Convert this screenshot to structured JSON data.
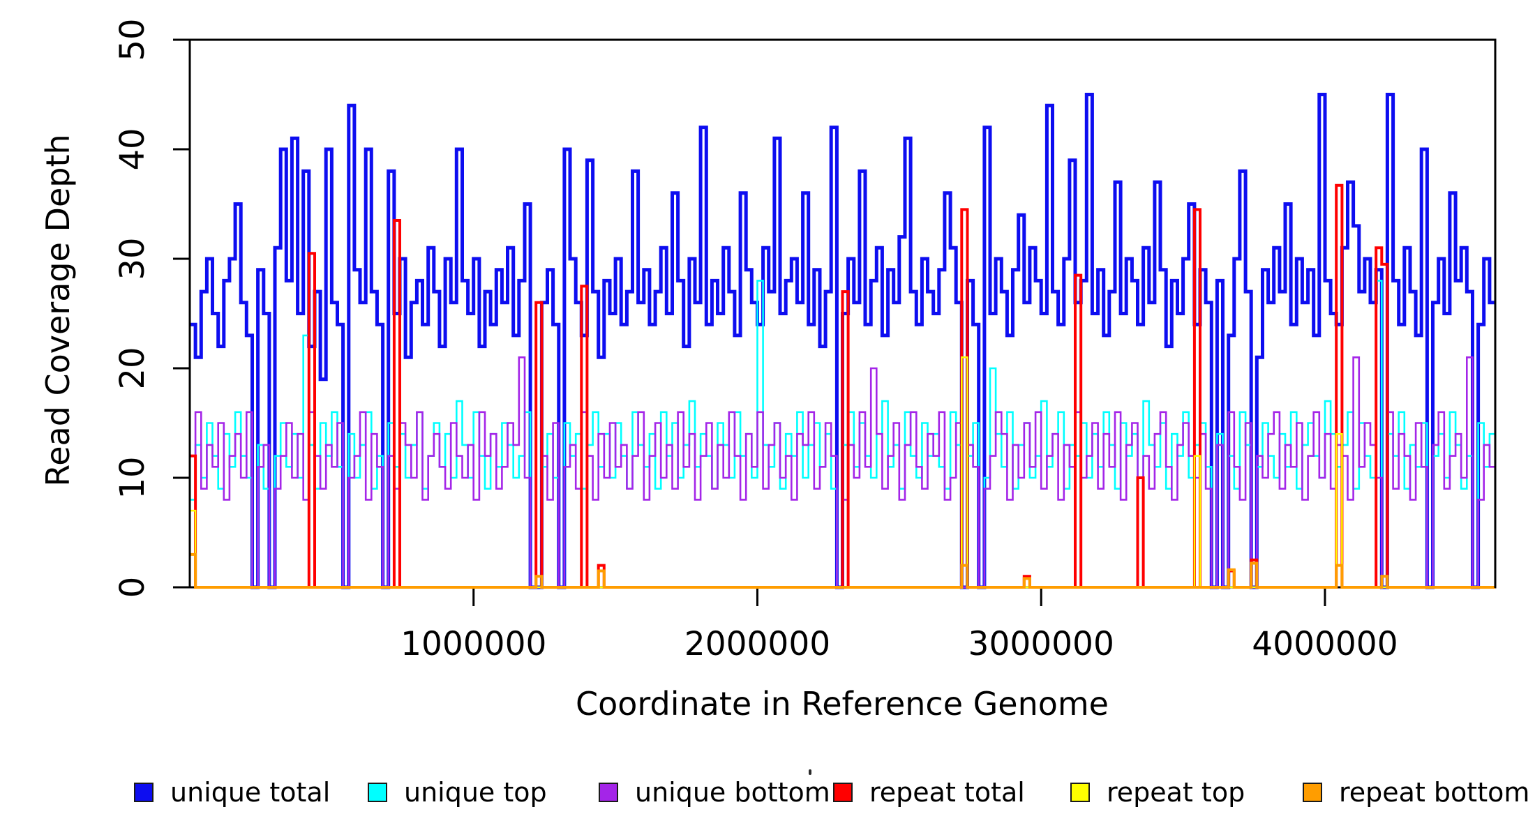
{
  "chart_data": {
    "type": "line",
    "subtype": "step-post",
    "title": "",
    "xlabel": "Coordinate in Reference Genome",
    "ylabel": "Read Coverage Depth",
    "xlim": [
      0,
      4600000
    ],
    "ylim": [
      0,
      50
    ],
    "grid": false,
    "x_start": 0,
    "x_step": 20000,
    "n_points": 230,
    "x_axis_ticks": [
      {
        "value": 1000000,
        "label": "1000000"
      },
      {
        "value": 2000000,
        "label": "2000000"
      },
      {
        "value": 3000000,
        "label": "3000000"
      },
      {
        "value": 4000000,
        "label": "4000000"
      }
    ],
    "y_axis_ticks": [
      {
        "value": 0,
        "label": "0"
      },
      {
        "value": 10,
        "label": "10"
      },
      {
        "value": 20,
        "label": "20"
      },
      {
        "value": 30,
        "label": "30"
      },
      {
        "value": 40,
        "label": "40"
      },
      {
        "value": 50,
        "label": "50"
      }
    ],
    "series": [
      {
        "name": "unique total",
        "color": "#0d0df0",
        "line_width": 5,
        "kind": "dense",
        "values": [
          24,
          21,
          27,
          30,
          25,
          22,
          28,
          30,
          35,
          26,
          23,
          0,
          29,
          25,
          0,
          31,
          40,
          28,
          41,
          25,
          38,
          22,
          27,
          19,
          40,
          26,
          24,
          0,
          44,
          29,
          26,
          40,
          27,
          24,
          0,
          38,
          25,
          30,
          21,
          26,
          28,
          24,
          31,
          27,
          22,
          30,
          26,
          40,
          28,
          25,
          30,
          22,
          27,
          24,
          29,
          26,
          31,
          23,
          28,
          35,
          0,
          0,
          26,
          29,
          24,
          0,
          40,
          30,
          26,
          23,
          39,
          27,
          21,
          28,
          25,
          30,
          24,
          27,
          38,
          26,
          29,
          24,
          27,
          31,
          25,
          36,
          28,
          22,
          30,
          26,
          42,
          24,
          28,
          25,
          31,
          27,
          23,
          36,
          29,
          26,
          24,
          31,
          27,
          41,
          25,
          28,
          30,
          26,
          36,
          24,
          29,
          22,
          27,
          42,
          0,
          25,
          30,
          26,
          38,
          24,
          28,
          31,
          23,
          29,
          26,
          32,
          41,
          27,
          24,
          30,
          27,
          25,
          29,
          36,
          31,
          26,
          0,
          28,
          24,
          0,
          42,
          25,
          30,
          27,
          23,
          29,
          34,
          26,
          31,
          28,
          25,
          44,
          27,
          24,
          30,
          39,
          26,
          28,
          45,
          25,
          29,
          23,
          27,
          37,
          25,
          30,
          28,
          24,
          31,
          26,
          37,
          29,
          22,
          28,
          25,
          30,
          35,
          24,
          29,
          26,
          0,
          28,
          0,
          23,
          30,
          38,
          27,
          0,
          21,
          29,
          26,
          31,
          27,
          35,
          24,
          30,
          26,
          29,
          23,
          45,
          28,
          25,
          24,
          31,
          37,
          33,
          27,
          30,
          26,
          29,
          0,
          45,
          28,
          24,
          31,
          27,
          23,
          40,
          0,
          26,
          30,
          25,
          36,
          28,
          31,
          27,
          0,
          24,
          30,
          26
        ]
      },
      {
        "name": "unique top",
        "color": "#00ffff",
        "line_width": 2.6,
        "kind": "dense",
        "values": [
          8,
          13,
          10,
          15,
          12,
          9,
          14,
          11,
          16,
          12,
          10,
          0,
          13,
          9,
          0,
          12,
          15,
          11,
          14,
          10,
          23,
          13,
          9,
          15,
          12,
          16,
          11,
          0,
          14,
          10,
          13,
          16,
          9,
          12,
          0,
          15,
          11,
          14,
          10,
          13,
          16,
          9,
          12,
          15,
          11,
          14,
          10,
          17,
          13,
          10,
          16,
          12,
          9,
          14,
          11,
          15,
          13,
          10,
          12,
          16,
          0,
          0,
          11,
          14,
          10,
          0,
          15,
          12,
          14,
          9,
          13,
          16,
          11,
          14,
          10,
          15,
          12,
          9,
          16,
          13,
          11,
          14,
          9,
          16,
          12,
          15,
          10,
          13,
          17,
          11,
          14,
          12,
          9,
          15,
          13,
          10,
          16,
          12,
          14,
          10,
          28,
          13,
          11,
          15,
          9,
          14,
          12,
          16,
          10,
          13,
          15,
          11,
          14,
          9,
          0,
          13,
          16,
          11,
          15,
          12,
          10,
          14,
          17,
          11,
          13,
          9,
          16,
          12,
          10,
          15,
          12,
          14,
          11,
          9,
          16,
          13,
          0,
          12,
          15,
          0,
          10,
          20,
          14,
          11,
          16,
          9,
          13,
          15,
          10,
          12,
          17,
          11,
          14,
          16,
          9,
          13,
          12,
          15,
          10,
          14,
          11,
          16,
          13,
          9,
          15,
          12,
          14,
          10,
          17,
          13,
          11,
          15,
          9,
          14,
          12,
          16,
          10,
          13,
          15,
          11,
          0,
          14,
          0,
          12,
          9,
          16,
          13,
          0,
          11,
          15,
          12,
          10,
          14,
          11,
          16,
          9,
          13,
          15,
          12,
          10,
          17,
          14,
          11,
          13,
          16,
          9,
          15,
          12,
          10,
          28,
          0,
          14,
          12,
          16,
          9,
          13,
          11,
          15,
          0,
          12,
          14,
          10,
          16,
          13,
          9,
          12,
          0,
          15,
          11,
          14
        ]
      },
      {
        "name": "unique bottom",
        "color": "#a425e8",
        "line_width": 2.6,
        "kind": "dense",
        "values": [
          12,
          16,
          9,
          13,
          11,
          15,
          8,
          12,
          14,
          10,
          16,
          0,
          11,
          13,
          0,
          9,
          12,
          15,
          10,
          14,
          8,
          16,
          12,
          9,
          13,
          11,
          15,
          0,
          10,
          12,
          16,
          8,
          14,
          11,
          0,
          12,
          9,
          15,
          13,
          10,
          16,
          8,
          12,
          14,
          11,
          9,
          15,
          12,
          10,
          13,
          8,
          16,
          12,
          14,
          9,
          11,
          15,
          13,
          21,
          10,
          0,
          0,
          12,
          8,
          15,
          0,
          11,
          13,
          9,
          16,
          12,
          8,
          14,
          10,
          15,
          11,
          13,
          9,
          12,
          16,
          8,
          12,
          15,
          10,
          13,
          9,
          16,
          11,
          14,
          8,
          12,
          15,
          9,
          13,
          10,
          16,
          12,
          8,
          14,
          11,
          16,
          9,
          13,
          15,
          10,
          12,
          8,
          14,
          13,
          16,
          9,
          11,
          15,
          12,
          0,
          8,
          13,
          10,
          16,
          11,
          20,
          14,
          9,
          12,
          15,
          8,
          13,
          16,
          11,
          9,
          14,
          12,
          16,
          8,
          10,
          15,
          0,
          13,
          11,
          0,
          9,
          12,
          16,
          14,
          8,
          13,
          10,
          15,
          11,
          16,
          9,
          12,
          14,
          8,
          13,
          11,
          16,
          10,
          12,
          15,
          9,
          14,
          11,
          16,
          8,
          13,
          15,
          10,
          12,
          9,
          14,
          16,
          11,
          8,
          13,
          15,
          12,
          10,
          14,
          9,
          0,
          13,
          0,
          16,
          11,
          8,
          15,
          0,
          12,
          10,
          14,
          16,
          9,
          13,
          11,
          15,
          8,
          12,
          16,
          10,
          14,
          9,
          13,
          12,
          8,
          21,
          11,
          15,
          13,
          10,
          0,
          16,
          9,
          14,
          12,
          8,
          15,
          11,
          0,
          13,
          16,
          9,
          12,
          14,
          10,
          21,
          0,
          8,
          13,
          11
        ]
      },
      {
        "name": "repeat total",
        "color": "#ff0000",
        "line_width": 4,
        "kind": "sparse",
        "base": 0,
        "spikes": {
          "0": 12,
          "21": 30.5,
          "36": 33.5,
          "61": 26,
          "69": 27.5,
          "72": 2,
          "115": 27,
          "136": 34.5,
          "147": 1,
          "156": 28.5,
          "167": 10,
          "177": 34.5,
          "183": 1.5,
          "187": 2.5,
          "202": 36.7,
          "209": 31,
          "210": 29.5
        }
      },
      {
        "name": "repeat top",
        "color": "#ffff00",
        "line_width": 2.5,
        "kind": "sparse",
        "base": 0,
        "spikes": {
          "0": 7,
          "136": 21,
          "177": 12,
          "202": 14
        }
      },
      {
        "name": "repeat bottom",
        "color": "#ff9d00",
        "line_width": 4,
        "kind": "sparse",
        "base": 0,
        "spikes": {
          "0": 3,
          "61": 1,
          "72": 1.5,
          "136": 2,
          "147": 0.8,
          "183": 1.6,
          "187": 2.2,
          "202": 2,
          "210": 1
        }
      }
    ],
    "legend": {
      "position": "bottom",
      "entries": [
        {
          "label": "unique total",
          "color": "#0d0df0"
        },
        {
          "label": "unique top",
          "color": "#00ffff"
        },
        {
          "label": "unique bottom",
          "color": "#a425e8"
        },
        {
          "label": "repeat total",
          "color": "#ff0000"
        },
        {
          "label": "repeat top",
          "color": "#ffff00"
        },
        {
          "label": "repeat bottom",
          "color": "#ff9d00"
        }
      ]
    },
    "axis_color": "#000000",
    "background_color": "#ffffff"
  }
}
